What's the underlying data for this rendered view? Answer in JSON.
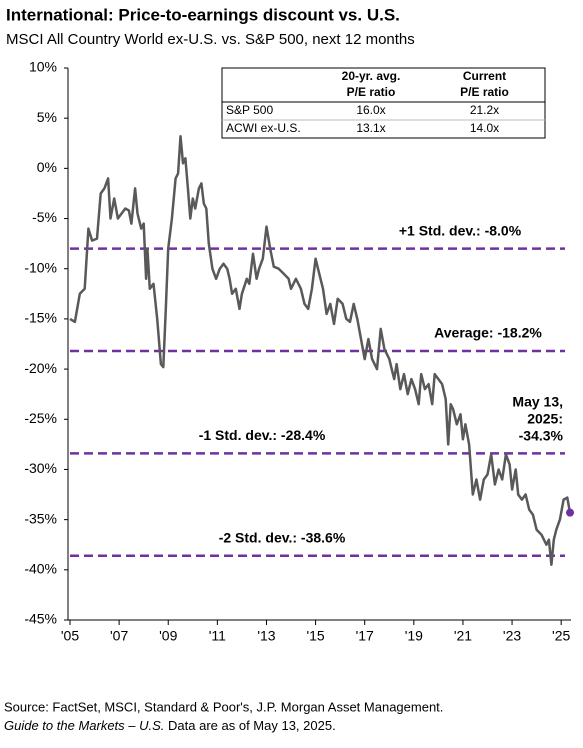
{
  "chart_data": {
    "type": "line",
    "title": "International: Price-to-earnings discount vs. U.S.",
    "subtitle": "MSCI All Country World ex-U.S. vs. S&P 500, next 12 months",
    "x": [
      2005.0,
      2005.2,
      2005.4,
      2005.6,
      2005.75,
      2005.9,
      2006.1,
      2006.25,
      2006.4,
      2006.55,
      2006.65,
      2006.8,
      2006.95,
      2007.1,
      2007.25,
      2007.4,
      2007.5,
      2007.65,
      2007.75,
      2007.9,
      2008.0,
      2008.1,
      2008.15,
      2008.25,
      2008.4,
      2008.55,
      2008.7,
      2008.8,
      2008.9,
      2009.0,
      2009.15,
      2009.3,
      2009.4,
      2009.5,
      2009.6,
      2009.7,
      2009.8,
      2009.9,
      2010.0,
      2010.1,
      2010.25,
      2010.35,
      2010.45,
      2010.55,
      2010.65,
      2010.8,
      2010.95,
      2011.1,
      2011.25,
      2011.4,
      2011.5,
      2011.6,
      2011.75,
      2011.9,
      2012.0,
      2012.2,
      2012.3,
      2012.45,
      2012.6,
      2012.7,
      2012.85,
      2013.0,
      2013.15,
      2013.3,
      2013.5,
      2013.7,
      2013.9,
      2014.0,
      2014.2,
      2014.4,
      2014.55,
      2014.7,
      2014.85,
      2015.0,
      2015.1,
      2015.3,
      2015.45,
      2015.6,
      2015.75,
      2015.9,
      2016.1,
      2016.25,
      2016.4,
      2016.55,
      2016.7,
      2016.85,
      2017.0,
      2017.15,
      2017.3,
      2017.5,
      2017.65,
      2017.8,
      2018.0,
      2018.1,
      2018.2,
      2018.3,
      2018.45,
      2018.6,
      2018.75,
      2018.9,
      2019.05,
      2019.2,
      2019.3,
      2019.45,
      2019.6,
      2019.75,
      2019.85,
      2020.0,
      2020.15,
      2020.3,
      2020.4,
      2020.5,
      2020.6,
      2020.75,
      2020.9,
      2021.0,
      2021.1,
      2021.25,
      2021.4,
      2021.55,
      2021.7,
      2021.85,
      2022.0,
      2022.15,
      2022.3,
      2022.45,
      2022.6,
      2022.75,
      2022.9,
      2023.0,
      2023.15,
      2023.25,
      2023.4,
      2023.55,
      2023.7,
      2023.85,
      2024.0,
      2024.2,
      2024.4,
      2024.5,
      2024.6,
      2024.7,
      2024.8,
      2024.95,
      2025.1,
      2025.25,
      2025.36
    ],
    "series": [
      {
        "color": "#595959",
        "values": [
          -15,
          -15.3,
          -12.5,
          -12,
          -6,
          -7.2,
          -7,
          -2.5,
          -2,
          -1,
          -5,
          -3,
          -5,
          -4.5,
          -4,
          -4.2,
          -5.5,
          -2,
          -4.5,
          -6,
          -5.5,
          -11,
          -8,
          -12,
          -11.5,
          -15,
          -19.5,
          -19.8,
          -14,
          -8,
          -5,
          -1,
          -0.5,
          3.2,
          0.5,
          1,
          -2,
          -5,
          -3,
          -4,
          -2,
          -1.5,
          -3.5,
          -4,
          -7.5,
          -10,
          -11,
          -10,
          -9.5,
          -10,
          -11,
          -12.5,
          -12,
          -14,
          -12.5,
          -11,
          -11.5,
          -8.5,
          -11,
          -10,
          -9,
          -5.8,
          -8,
          -9.8,
          -10,
          -10.5,
          -11,
          -12,
          -11,
          -12,
          -13.5,
          -14,
          -12,
          -9,
          -10,
          -12,
          -14.5,
          -13.5,
          -15.5,
          -13,
          -13.5,
          -15,
          -15.3,
          -13.5,
          -15,
          -17,
          -19,
          -17,
          -19,
          -20,
          -16,
          -18,
          -19,
          -20,
          -21,
          -19.5,
          -22,
          -20.5,
          -22.5,
          -21,
          -22,
          -23.5,
          -20.5,
          -22,
          -21.5,
          -23.5,
          -20.5,
          -21,
          -21.5,
          -23,
          -27.5,
          -23.5,
          -24,
          -25.5,
          -24.5,
          -27,
          -25.5,
          -27.5,
          -32.5,
          -31,
          -33,
          -31,
          -30.5,
          -28.5,
          -31.5,
          -30,
          -31,
          -28.5,
          -29.5,
          -32,
          -30,
          -32.5,
          -33,
          -32.5,
          -34,
          -34.5,
          -36,
          -36.5,
          -37.5,
          -37,
          -39.5,
          -37,
          -36,
          -35,
          -33,
          -32.8,
          -34.3
        ]
      }
    ],
    "marker_color": "#7030a0",
    "annotation_lines": [
      "May 13,",
      "2025:",
      "-34.3%"
    ],
    "reference_color": "#7030a0",
    "reference_lines": [
      {
        "label": "+1 Std. dev.: -8.0%",
        "value": -8.0
      },
      {
        "label": "Average: -18.2%",
        "value": -18.2
      },
      {
        "label": "-1 Std. dev.: -28.4%",
        "value": -28.4
      },
      {
        "label": "-2 Std. dev.: -38.6%",
        "value": -38.6
      }
    ],
    "xlim": [
      2005,
      2025.4
    ],
    "xticks": [
      {
        "value": 2005,
        "label": "'05"
      },
      {
        "value": 2007,
        "label": "'07"
      },
      {
        "value": 2009,
        "label": "'09"
      },
      {
        "value": 2011,
        "label": "'11"
      },
      {
        "value": 2013,
        "label": "'13"
      },
      {
        "value": 2015,
        "label": "'15"
      },
      {
        "value": 2017,
        "label": "'17"
      },
      {
        "value": 2019,
        "label": "'19"
      },
      {
        "value": 2021,
        "label": "'21"
      },
      {
        "value": 2023,
        "label": "'23"
      },
      {
        "value": 2025,
        "label": "'25"
      }
    ],
    "ylim": [
      -45,
      10
    ],
    "yticks": [
      {
        "value": 10,
        "label": "10%"
      },
      {
        "value": 5,
        "label": "5%"
      },
      {
        "value": 0,
        "label": "0%"
      },
      {
        "value": -5,
        "label": "-5%"
      },
      {
        "value": -10,
        "label": "-10%"
      },
      {
        "value": -15,
        "label": "-15%"
      },
      {
        "value": -20,
        "label": "-20%"
      },
      {
        "value": -25,
        "label": "-25%"
      },
      {
        "value": -30,
        "label": "-30%"
      },
      {
        "value": -35,
        "label": "-35%"
      },
      {
        "value": -40,
        "label": "-40%"
      },
      {
        "value": -45,
        "label": "-45%"
      }
    ],
    "table": {
      "header": [
        [
          "20-yr. avg.",
          "P/E ratio"
        ],
        [
          "Current",
          "P/E ratio"
        ]
      ],
      "rows": [
        [
          "S&P 500",
          "16.0x",
          "21.2x"
        ],
        [
          "ACWI ex-U.S.",
          "13.1x",
          "14.0x"
        ]
      ]
    },
    "footer": {
      "source": "Source: FactSet, MSCI, Standard & Poor's, J.P. Morgan Asset Management.",
      "note_italic": "Guide to the Markets – U.S.",
      "note": "Data are as of May 13, 2025."
    }
  }
}
